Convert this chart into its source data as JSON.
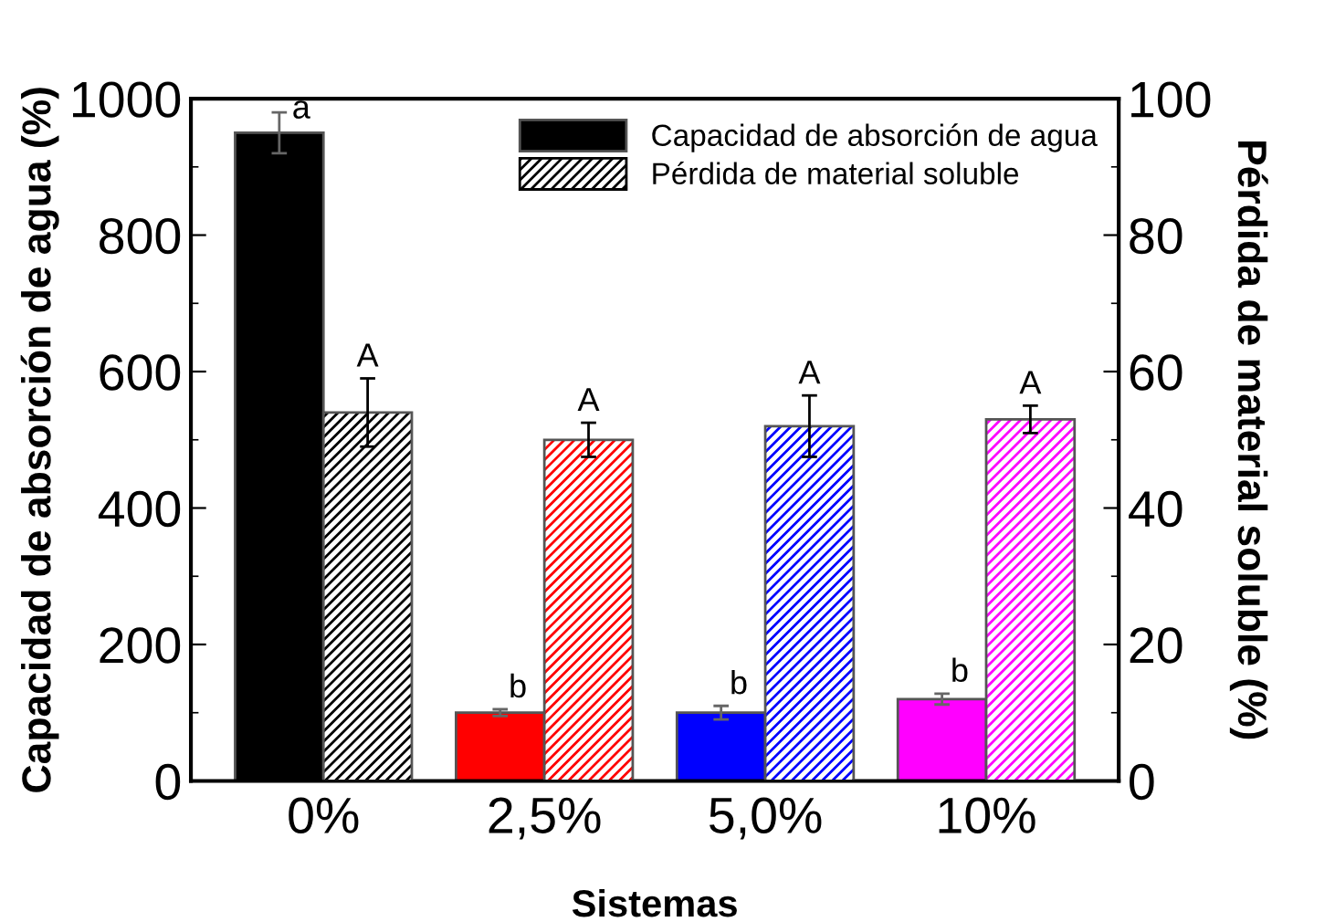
{
  "chart_data": {
    "type": "bar",
    "xlabel": "Sistemas",
    "ylabel": "Capacidad de absorción de agua (%)",
    "y2label": "Pérdida de material soluble (%)",
    "categories": [
      "0%",
      "2,5%",
      "5,0%",
      "10%"
    ],
    "series": [
      {
        "name": "Capacidad de absorción de agua",
        "color": "#000000",
        "colors": [
          "#000000",
          "#ff0000",
          "#0000ff",
          "#ff00ff"
        ],
        "values": [
          950,
          100,
          100,
          120
        ],
        "errors": [
          30,
          5,
          10,
          8
        ],
        "value_labels": [
          "a",
          "b",
          "b",
          "b"
        ]
      },
      {
        "name": "Pérdida de material soluble",
        "axis": "y2",
        "color": "#000000",
        "colors": [
          "#000000",
          "#ff0000",
          "#0000ff",
          "#ff00ff"
        ],
        "values": [
          54,
          50,
          52,
          53
        ],
        "errors": [
          5,
          2.5,
          4.5,
          2
        ],
        "value_labels": [
          "A",
          "A",
          "A",
          "A"
        ]
      }
    ],
    "ylim": [
      0,
      1000
    ],
    "yticks": [
      0,
      200,
      400,
      600,
      800,
      1000
    ],
    "y2lim": [
      0,
      100
    ],
    "y2ticks": [
      0,
      20,
      40,
      60,
      80,
      100
    ],
    "legend": "top right",
    "grid": false
  }
}
